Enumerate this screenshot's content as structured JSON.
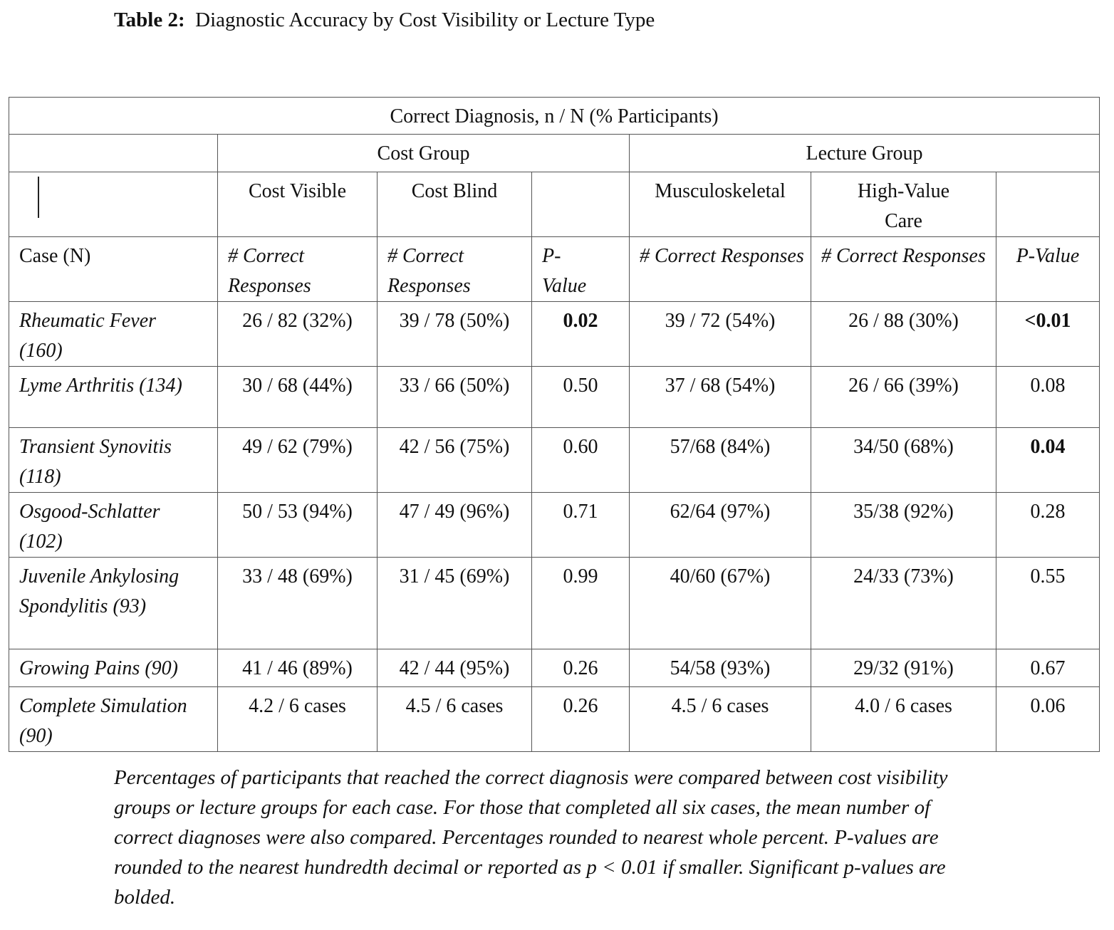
{
  "title": {
    "label": "Table 2:",
    "text": "Diagnostic Accuracy by Cost Visibility or Lecture Type"
  },
  "table": {
    "caption": "Correct Diagnosis, n / N (% Participants)",
    "groups": [
      "Cost Group",
      "Lecture Group"
    ],
    "subgroups": [
      "Cost Visible",
      "Cost Blind",
      "Musculoskeletal",
      "High-Value Care"
    ],
    "columns": [
      "Case (N)",
      "# Correct Responses",
      "# Correct Responses",
      "P-Value",
      "# Correct Responses",
      "# Correct Responses",
      "P-Value"
    ],
    "rows": [
      [
        "Rheumatic Fever (160)",
        "26 / 82 (32%)",
        "39 / 78 (50%)",
        "0.02",
        "39 / 72 (54%)",
        "26 / 88 (30%)",
        "<0.01"
      ],
      [
        "Lyme Arthritis (134)",
        "30 / 68 (44%)",
        "33 / 66 (50%)",
        "0.50",
        "37 / 68 (54%)",
        "26 / 66 (39%)",
        "0.08"
      ],
      [
        "Transient Synovitis (118)",
        "49 / 62 (79%)",
        "42 / 56 (75%)",
        "0.60",
        "57/68 (84%)",
        "34/50 (68%)",
        "0.04"
      ],
      [
        "Osgood-Schlatter (102)",
        "50 / 53 (94%)",
        "47 / 49 (96%)",
        "0.71",
        "62/64 (97%)",
        "35/38 (92%)",
        "0.28"
      ],
      [
        "Juvenile Ankylosing Spondylitis (93)",
        "33 / 48 (69%)",
        "31 / 45 (69%)",
        "0.99",
        "40/60 (67%)",
        "24/33 (73%)",
        "0.55"
      ],
      [
        "Growing Pains (90)",
        "41 / 46 (89%)",
        "42 / 44 (95%)",
        "0.26",
        "54/58 (93%)",
        "29/32 (91%)",
        "0.67"
      ],
      [
        "Complete Simulation (90)",
        "4.2 / 6 cases",
        "4.5 / 6 cases",
        "0.26",
        "4.5 / 6 cases",
        "4.0 / 6 cases",
        "0.06"
      ]
    ]
  },
  "footnote": "Percentages of participants that reached the correct diagnosis were compared between cost visibility groups or lecture groups for each case. For those that completed all six cases, the mean number of correct diagnoses were also compared. Percentages rounded to nearest whole percent. P-values are rounded to the nearest hundredth decimal or reported as p < 0.01 if smaller. Significant p-values are bolded."
}
